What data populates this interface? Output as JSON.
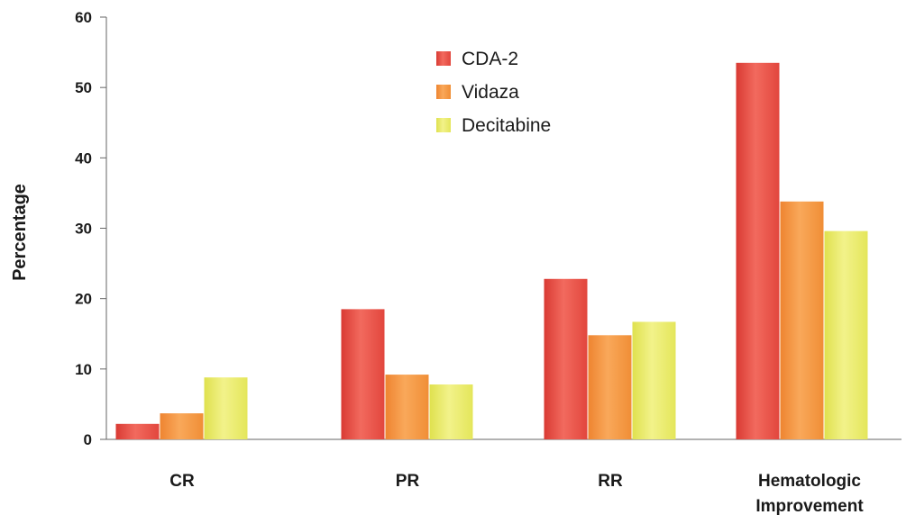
{
  "chart_data": {
    "type": "bar",
    "categories": [
      "CR",
      "PR",
      "RR",
      "Hematologic Improvement"
    ],
    "series": [
      {
        "name": "CDA-2",
        "values": [
          2.2,
          18.5,
          22.8,
          53.5
        ],
        "color": "#e8453c"
      },
      {
        "name": "Vidaza",
        "values": [
          3.7,
          9.2,
          14.8,
          33.8
        ],
        "color": "#f4913c"
      },
      {
        "name": "Decitabine",
        "values": [
          8.8,
          7.8,
          16.7,
          29.6
        ],
        "color": "#e6e85c"
      }
    ],
    "xlabel": "",
    "ylabel": "Percentage",
    "ylim": [
      0,
      60
    ],
    "yticks": [
      0,
      10,
      20,
      30,
      40,
      50,
      60
    ],
    "grid": false,
    "legend_position": "top-center"
  }
}
